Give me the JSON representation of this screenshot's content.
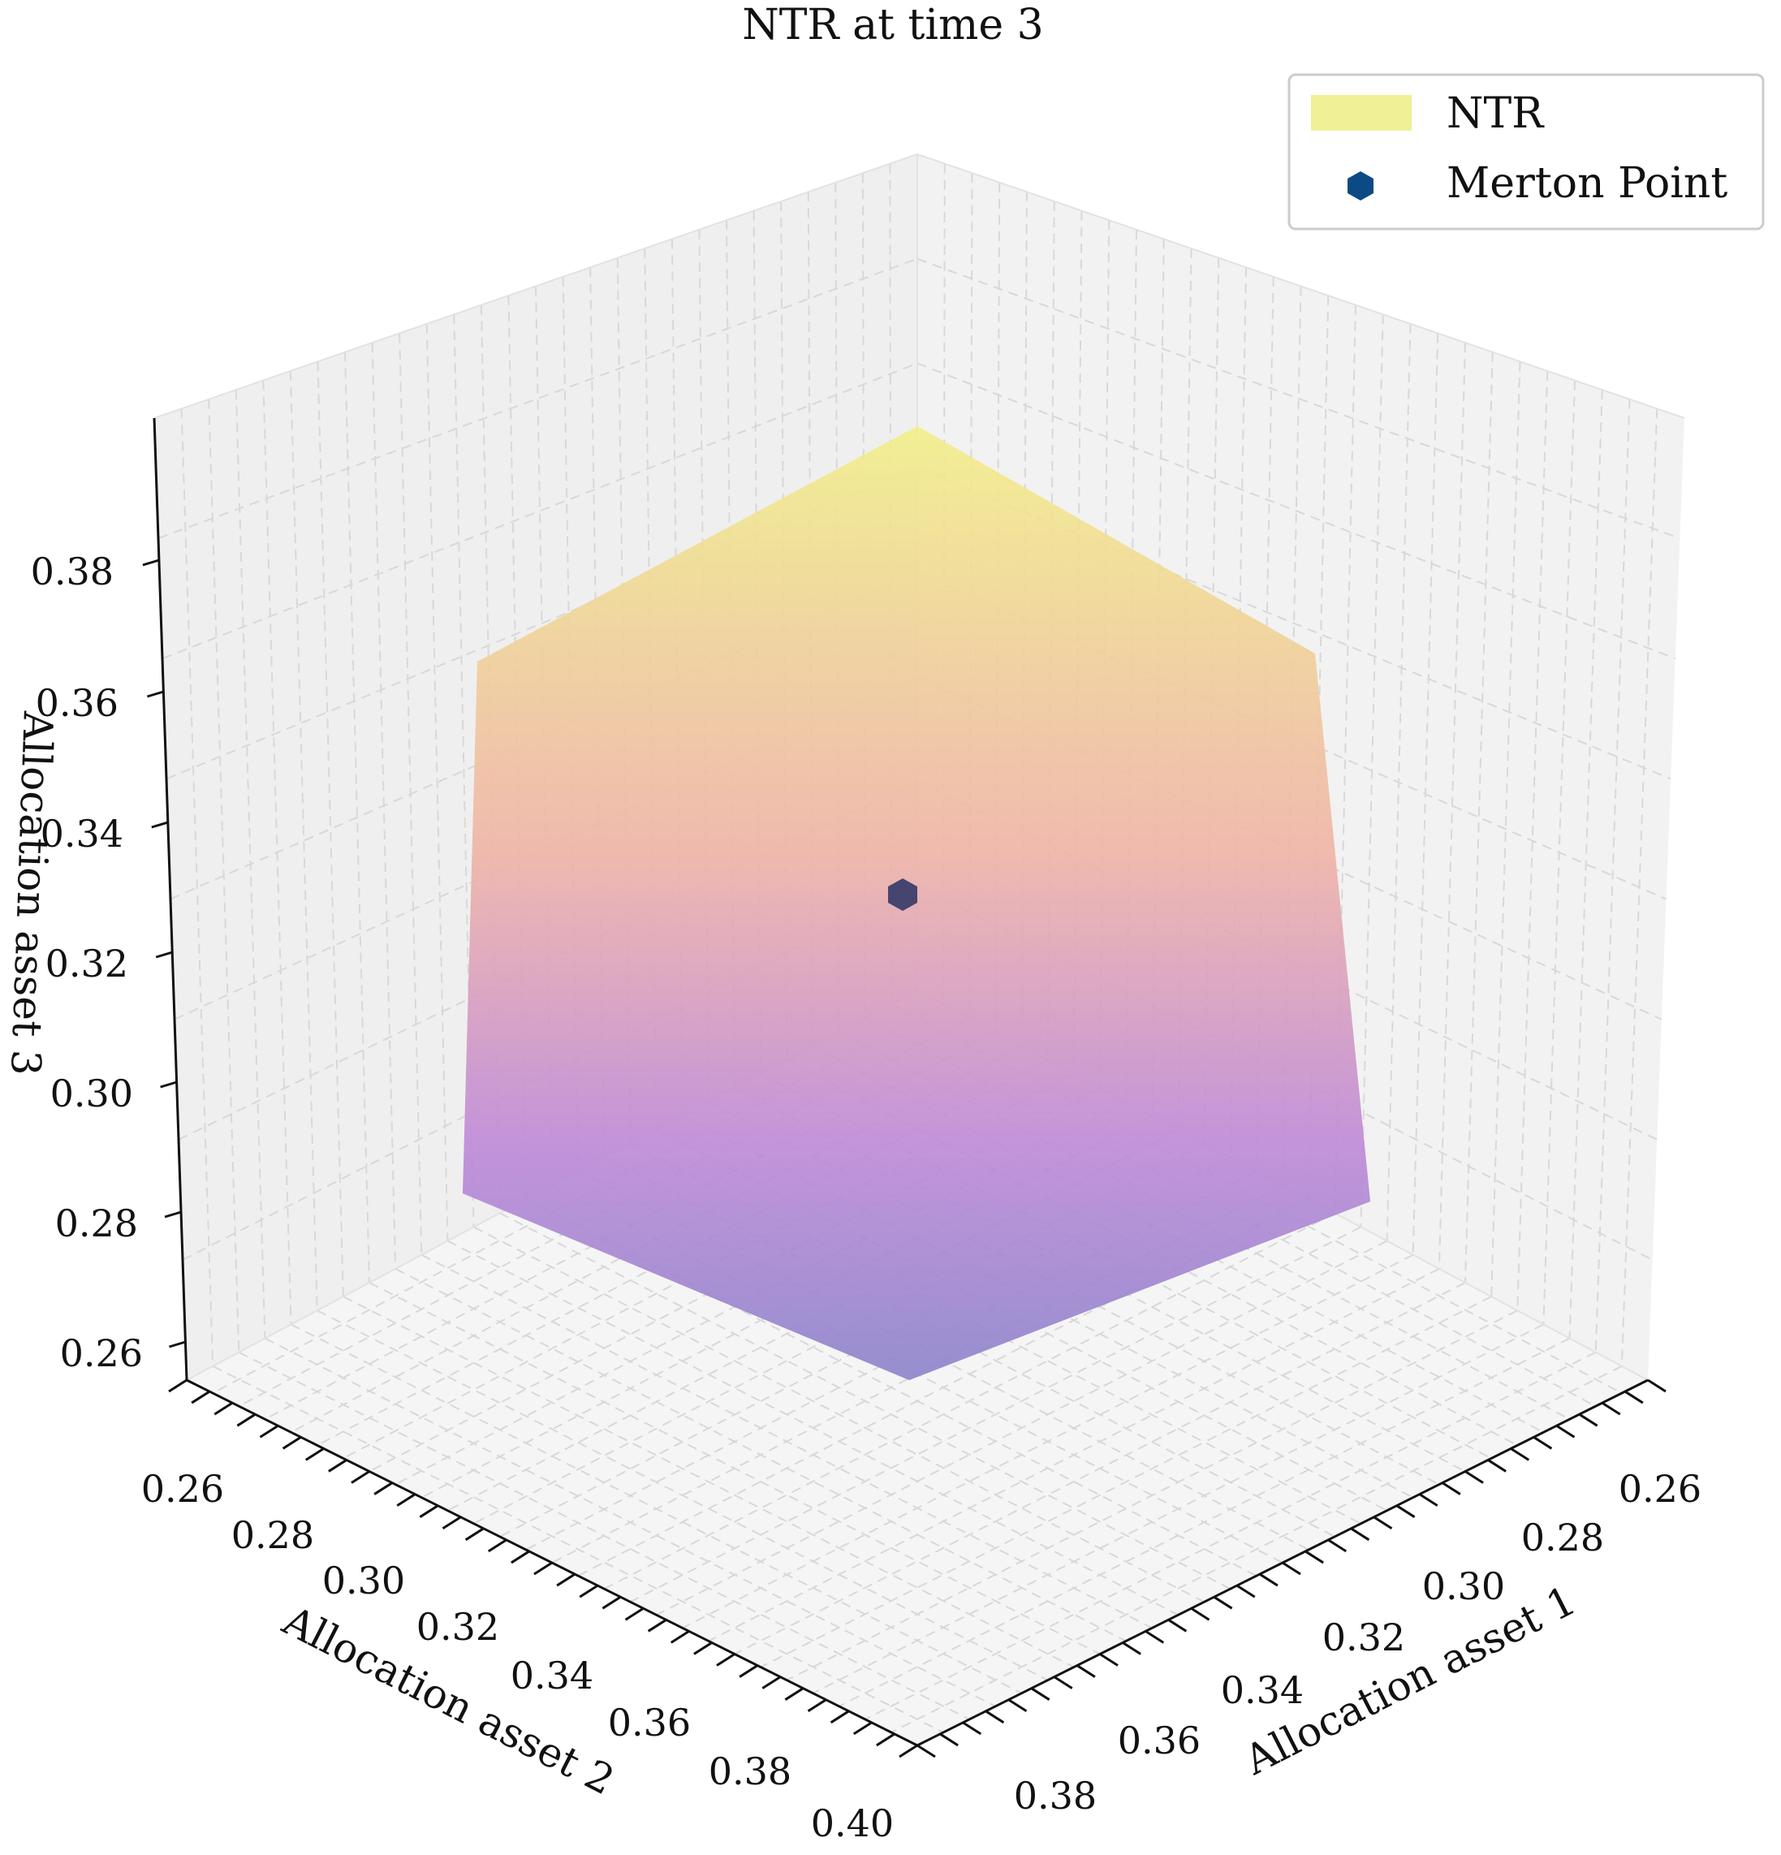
{
  "chart_data": {
    "type": "3d-surface",
    "title": "NTR at time 3",
    "legend": {
      "placement": "top-right",
      "entries": [
        {
          "label": "NTR",
          "kind": "patch",
          "color": "#f0f096"
        },
        {
          "label": "Merton Point",
          "kind": "marker",
          "marker": "hexagon",
          "color": "#0b4a85"
        }
      ]
    },
    "axes": {
      "x": {
        "label": "Allocation asset 1",
        "ticks": [
          "0.26",
          "0.28",
          "0.30",
          "0.32",
          "0.34",
          "0.36",
          "0.38"
        ]
      },
      "y": {
        "label": "Allocation asset 2",
        "ticks": [
          "0.26",
          "0.28",
          "0.30",
          "0.32",
          "0.34",
          "0.36",
          "0.38",
          "0.40"
        ]
      },
      "z": {
        "label": "Allocation asset 3",
        "ticks": [
          "0.26",
          "0.28",
          "0.30",
          "0.32",
          "0.34",
          "0.36",
          "0.38"
        ]
      }
    },
    "merton_point": {
      "x": 0.33,
      "y": 0.33,
      "z": 0.33
    },
    "ntr_region": {
      "shape": "cube",
      "range_asset_1": [
        0.28,
        0.38
      ],
      "range_asset_2": [
        0.28,
        0.38
      ],
      "range_asset_3": [
        0.28,
        0.38
      ],
      "colormap": "plasma",
      "color_top": "#f2f08a",
      "color_mid": "#f0b4a8",
      "color_low": "#c08ad8",
      "color_bottom": "#8c84cc"
    },
    "grid": true
  }
}
